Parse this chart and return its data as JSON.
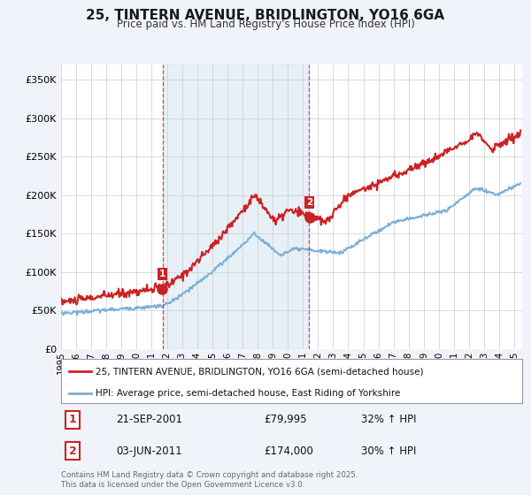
{
  "title": "25, TINTERN AVENUE, BRIDLINGTON, YO16 6GA",
  "subtitle": "Price paid vs. HM Land Registry's House Price Index (HPI)",
  "ylabel_ticks": [
    "£0",
    "£50K",
    "£100K",
    "£150K",
    "£200K",
    "£250K",
    "£300K",
    "£350K"
  ],
  "ytick_values": [
    0,
    50000,
    100000,
    150000,
    200000,
    250000,
    300000,
    350000
  ],
  "ylim": [
    0,
    370000
  ],
  "xlim_start": 1995,
  "xlim_end": 2025.5,
  "purchase1_date": 2001.72,
  "purchase1_price": 79995,
  "purchase2_date": 2011.42,
  "purchase2_price": 174000,
  "hpi_color": "#7bafd4",
  "price_color": "#cc2222",
  "legend_price_label": "25, TINTERN AVENUE, BRIDLINGTON, YO16 6GA (semi-detached house)",
  "legend_hpi_label": "HPI: Average price, semi-detached house, East Riding of Yorkshire",
  "note1_num": "1",
  "note1_date": "21-SEP-2001",
  "note1_price": "£79,995",
  "note1_hpi": "32% ↑ HPI",
  "note2_num": "2",
  "note2_date": "03-JUN-2011",
  "note2_price": "£174,000",
  "note2_hpi": "30% ↑ HPI",
  "footer": "Contains HM Land Registry data © Crown copyright and database right 2025.\nThis data is licensed under the Open Government Licence v3.0.",
  "background_color": "#f0f4fa",
  "plot_bg_color": "#ffffff",
  "xtick_years": [
    1995,
    1996,
    1997,
    1998,
    1999,
    2000,
    2001,
    2002,
    2003,
    2004,
    2005,
    2006,
    2007,
    2008,
    2009,
    2010,
    2011,
    2012,
    2013,
    2014,
    2015,
    2016,
    2017,
    2018,
    2019,
    2020,
    2021,
    2022,
    2023,
    2024,
    2025
  ]
}
